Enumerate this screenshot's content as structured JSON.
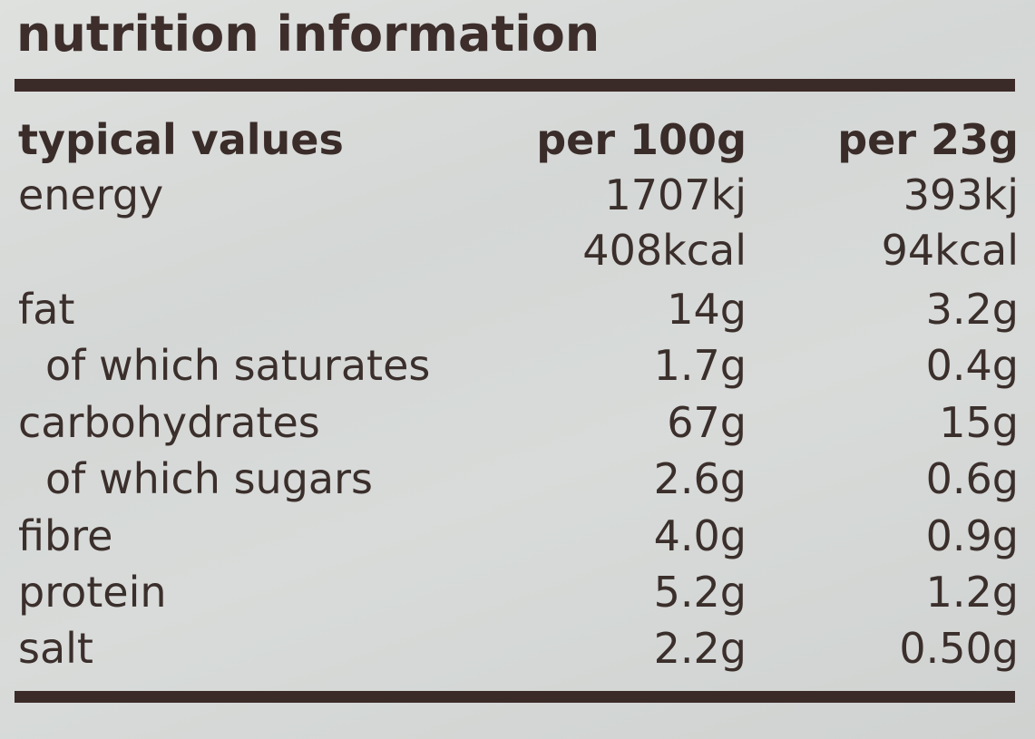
{
  "title": "nutrition information",
  "header": {
    "label": "typical values",
    "col1": "per 100g",
    "col2": "per 23g"
  },
  "rows": [
    {
      "name": "energy",
      "per100": "1707kj",
      "per23": "393kj"
    },
    {
      "name": "",
      "per100": "408kcal",
      "per23": "94kcal"
    },
    {
      "name": "fat",
      "per100": "14g",
      "per23": "3.2g"
    },
    {
      "name": "of which saturates",
      "per100": "1.7g",
      "per23": "0.4g"
    },
    {
      "name": "carbohydrates",
      "per100": "67g",
      "per23": "15g"
    },
    {
      "name": "of which sugars",
      "per100": "2.6g",
      "per23": "0.6g"
    },
    {
      "name": "fibre",
      "per100": "4.0g",
      "per23": "0.9g"
    },
    {
      "name": "protein",
      "per100": "5.2g",
      "per23": "1.2g"
    },
    {
      "name": "salt",
      "per100": "2.2g",
      "per23": "0.50g"
    }
  ],
  "colors": {
    "text": "#3b2f2c",
    "rule": "#3b2b28",
    "background": "#d8dbd9"
  }
}
